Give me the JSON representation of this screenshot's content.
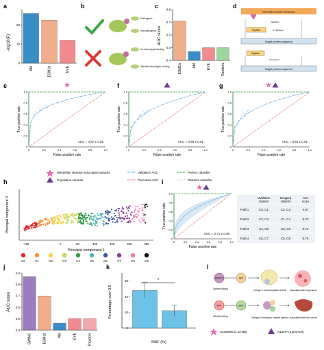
{
  "panel_labels": [
    "a",
    "b",
    "c",
    "d",
    "e",
    "f",
    "g",
    "h",
    "i",
    "j",
    "k",
    "l"
  ],
  "panel_a": {
    "ylabel": "-log10(P)",
    "xlim_labels": [
      "AM",
      "ESM1b",
      "EVE"
    ],
    "y_ticks": [
      "0",
      "10",
      "20"
    ],
    "chart_data": {
      "type": "bar",
      "categories": [
        "AM",
        "ESM1b",
        "EVE"
      ],
      "values": [
        26,
        22.5,
        12
      ],
      "ylim": [
        0,
        28
      ],
      "colors": [
        "#3a8ec8",
        "#f0ae8c",
        "#f28b8f"
      ]
    }
  },
  "panel_b": {
    "pathogenic": "Pathogenic",
    "not_pathogenic": "Not pathogenic",
    "no_stereotypic": "No stereotypic binding",
    "specific": "Specific stereotypic binding"
  },
  "panel_c": {
    "ylabel": "AUC score",
    "y_ticks": [
      "0.4",
      "0.5",
      "0.6",
      "0.7",
      "0.8"
    ],
    "chart_data": {
      "type": "bar",
      "categories": [
        "ESM1b",
        "AM",
        "EVE",
        "Random"
      ],
      "values": [
        0.71,
        0.47,
        0.5,
        0.5
      ],
      "ylim": [
        0.4,
        0.8
      ],
      "colors": [
        "#f0ae8c",
        "#3a8ec8",
        "#f28b8f",
        "#9fd49a"
      ]
    }
  },
  "panel_d": {
    "top_label": "Interaction protein sequence",
    "target1": "Target protein sequence",
    "peptide1": "Peptide",
    "target2": "Target protein sequence",
    "peptide2": "Peptide",
    "note1": "Validation",
    "note2": "& Pathways",
    "note3": "Interactions"
  },
  "roc_common": {
    "xlabel": "False positive rate",
    "ylabel": "True positive rate",
    "ticks": [
      "0",
      "0.2",
      "0.4",
      "0.6",
      "0.8",
      "1.0"
    ]
  },
  "panel_e": {
    "auc": "AUC = 0.87 ± 0.02"
  },
  "panel_f": {
    "auc": "AUC = 0.80 ± 0.01"
  },
  "panel_g": {
    "auc": "AUC = 0.81 ± 0.01"
  },
  "legend": {
    "mendelian": "Mendelian disease-associated variants",
    "population": "Population variants",
    "validation": "Validation AUC",
    "permuted": "Permuted AUC",
    "perfect": "Perfect classifier",
    "random": "Random classifier"
  },
  "panel_h": {
    "xlabel": "Principal component 1",
    "ylabel": "Principal component 2",
    "x_ticks": [
      "-100",
      "0",
      "50",
      "100",
      "150",
      "200",
      "250"
    ],
    "clusters": [
      "C0",
      "C1",
      "C2",
      "C3",
      "C4",
      "C5",
      "C6",
      "C7",
      "C8",
      "C9"
    ],
    "colors": [
      "#e4262b",
      "#f0993e",
      "#f6d04c",
      "#c7d94e",
      "#2e9b48",
      "#4bb7b0",
      "#3b57a6",
      "#8a3d96",
      "#e87fb1",
      "#111111"
    ]
  },
  "panel_i": {
    "auc": "AUC = 0.71 ± 0.08",
    "ticks": [
      "0",
      "0.2",
      "0.4",
      "0.6",
      "0.8",
      "1.0"
    ],
    "table": {
      "headers": [
        "",
        "Validation clusters",
        "Dropped clusters",
        "AUC score"
      ],
      "rows": [
        [
          "Fold 1",
          "C0, C1",
          "C2, C3",
          "0.67"
        ],
        [
          "Fold 2",
          "C2, C3",
          "C1, C4",
          "0.70"
        ],
        [
          "Fold 3",
          "C4, C5",
          "C3, C6",
          "0.72"
        ],
        [
          "Fold 4",
          "C6, C7",
          "C5, C8",
          "0.76"
        ]
      ]
    }
  },
  "panel_j": {
    "ylabel": "AUC score",
    "y_ticks": [
      "0.4",
      "0.5",
      "0.6",
      "0.7",
      "0.8",
      "0.9"
    ],
    "chart_data": {
      "type": "bar",
      "categories": [
        "SWING",
        "ESM1b",
        "AM",
        "EVE",
        "Random"
      ],
      "values": [
        0.87,
        0.7,
        0.46,
        0.5,
        0.5
      ],
      "ylim": [
        0.4,
        0.9
      ],
      "colors": [
        "#9b7ec0",
        "#f0ae8c",
        "#3a8ec8",
        "#f28b8f",
        "#f5a8ab"
      ]
    }
  },
  "panel_k": {
    "ylabel": "Percentage over 0.5",
    "xlabel": "MAF (%)",
    "categories": [
      "<1%",
      ">1%"
    ],
    "sig": "*",
    "y_ticks": [
      "0",
      "20",
      "40",
      "60"
    ],
    "chart_data": {
      "type": "bar",
      "categories": [
        "<1%",
        ">1%"
      ],
      "values": [
        48,
        22
      ],
      "ylim": [
        0,
        70
      ],
      "errors": [
        10,
        7
      ],
      "colors": [
        "#6ec2e8",
        "#6ec2e8"
      ]
    }
  },
  "panel_l": {
    "row1_labels": [
      "Altered binding",
      "Change in phosphorylation activity",
      "Associated with lung cancer"
    ],
    "row2_labels": [
      "Altered binding",
      "Changes in binding to multiple partners",
      "Associated with liver cancer"
    ],
    "snp1": "rs2309000 (c.I1748a)",
    "snp2": "rs12977 (p.gln37val)",
    "gene1": "PRKDC",
    "gene2": "AKT",
    "gene3": "NFK",
    "gene4": "SRC"
  }
}
